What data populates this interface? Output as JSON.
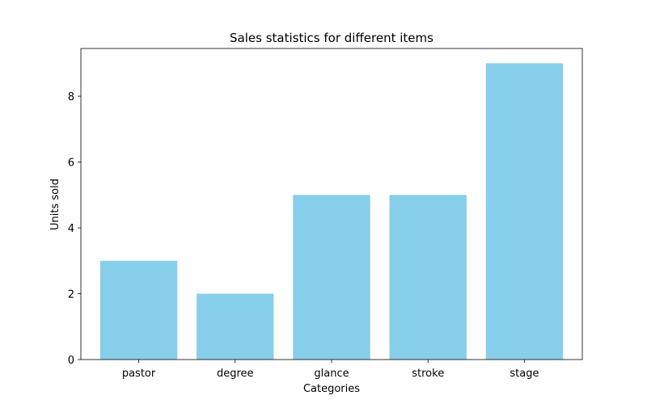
{
  "chart_data": {
    "type": "bar",
    "title": "Sales statistics for different items",
    "xlabel": "Categories",
    "ylabel": "Units sold",
    "categories": [
      "pastor",
      "degree",
      "glance",
      "stroke",
      "stage"
    ],
    "values": [
      3,
      2,
      5,
      5,
      9
    ],
    "ylim": [
      0,
      9.45
    ],
    "yticks": [
      0,
      2,
      4,
      6,
      8
    ],
    "bar_color": "#87CEEB",
    "grid": false,
    "legend": "none"
  }
}
